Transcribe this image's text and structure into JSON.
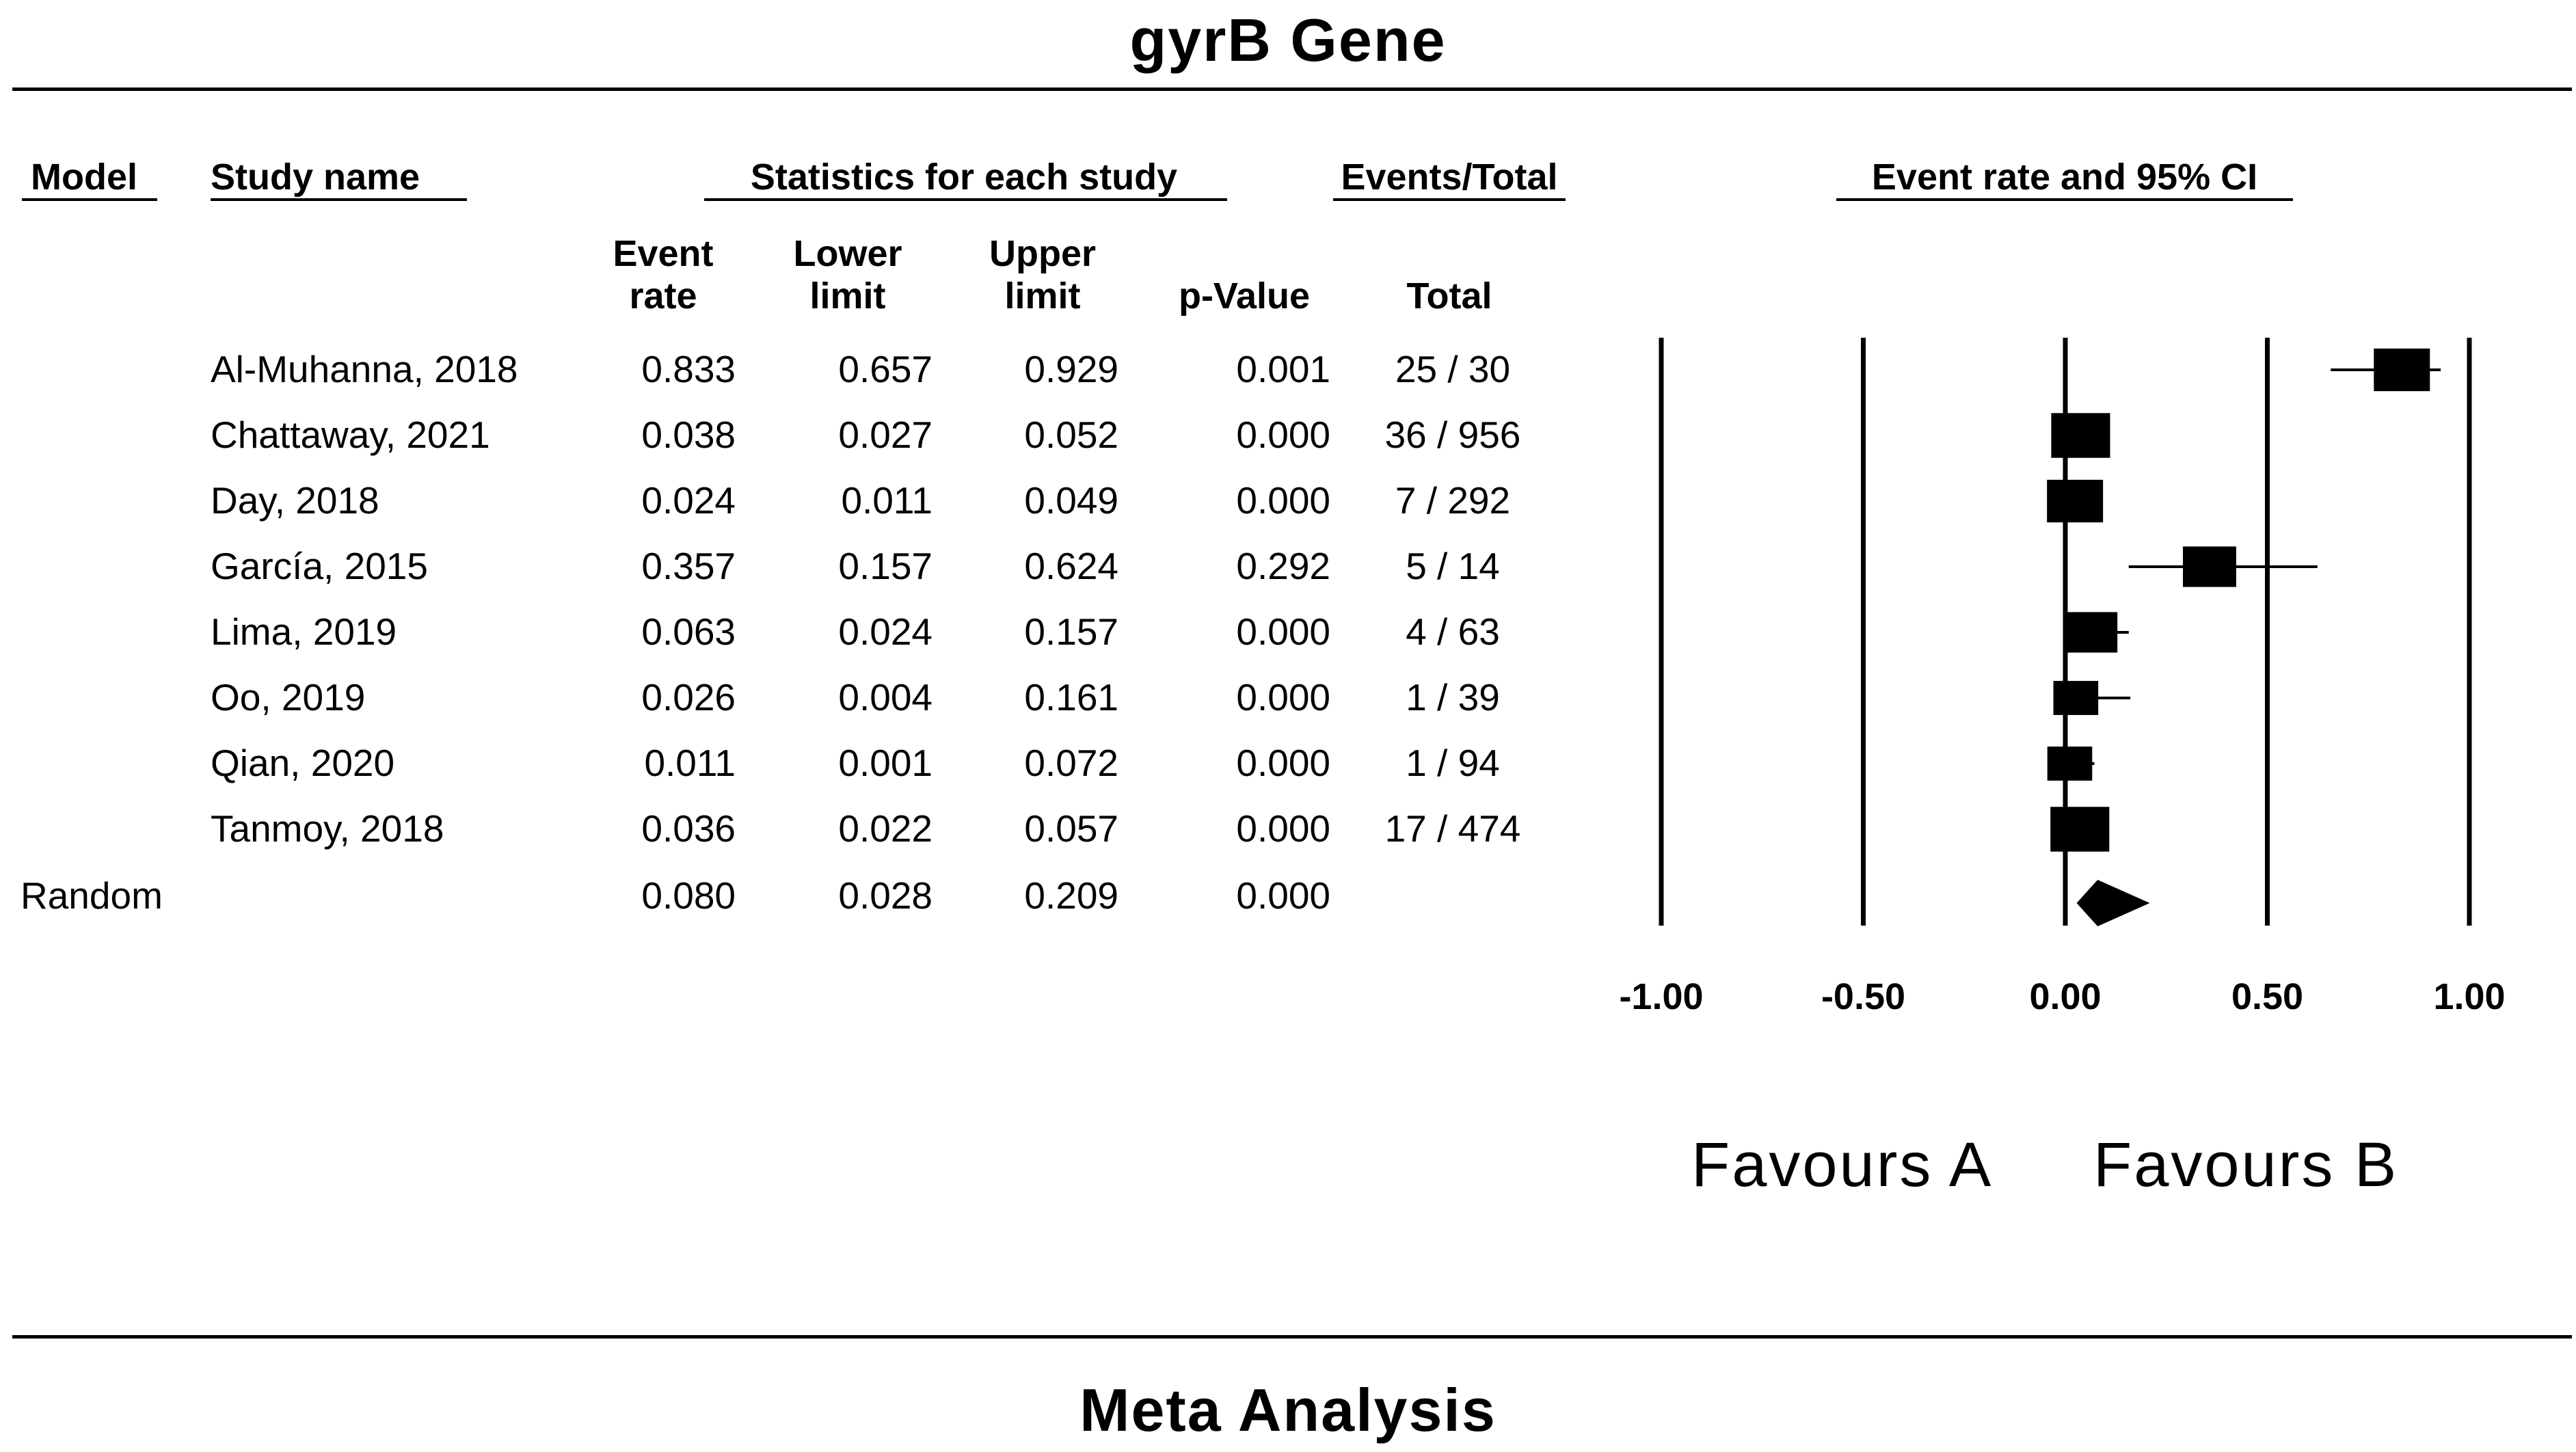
{
  "title": "gyrB Gene",
  "footer": "Meta Analysis",
  "headers": {
    "model": "Model",
    "study_name": "Study name",
    "statistics": "Statistics for each study",
    "events_total": "Events/Total",
    "plot": "Event rate and 95%  CI"
  },
  "subheaders": {
    "event_rate": [
      "Event",
      "rate"
    ],
    "lower_limit": [
      "Lower",
      "limit"
    ],
    "upper_limit": [
      "Upper",
      "limit"
    ],
    "p_value": "p-Value",
    "total": "Total"
  },
  "rows": [
    {
      "study": "Al-Muhanna, 2018",
      "rate": "0.833",
      "lower": "0.657",
      "upper": "0.929",
      "p": "0.001",
      "total": "25 / 30"
    },
    {
      "study": "Chattaway, 2021",
      "rate": "0.038",
      "lower": "0.027",
      "upper": "0.052",
      "p": "0.000",
      "total": "36 / 956"
    },
    {
      "study": "Day, 2018",
      "rate": "0.024",
      "lower": "0.011",
      "upper": "0.049",
      "p": "0.000",
      "total": "7 / 292"
    },
    {
      "study": "García, 2015",
      "rate": "0.357",
      "lower": "0.157",
      "upper": "0.624",
      "p": "0.292",
      "total": "5 / 14"
    },
    {
      "study": "Lima, 2019",
      "rate": "0.063",
      "lower": "0.024",
      "upper": "0.157",
      "p": "0.000",
      "total": "4 / 63"
    },
    {
      "study": "Oo, 2019",
      "rate": "0.026",
      "lower": "0.004",
      "upper": "0.161",
      "p": "0.000",
      "total": "1 / 39"
    },
    {
      "study": "Qian, 2020",
      "rate": "0.011",
      "lower": "0.001",
      "upper": "0.072",
      "p": "0.000",
      "total": "1 / 94"
    },
    {
      "study": "Tanmoy, 2018",
      "rate": "0.036",
      "lower": "0.022",
      "upper": "0.057",
      "p": "0.000",
      "total": "17 / 474"
    }
  ],
  "summary": {
    "model": "Random",
    "rate": "0.080",
    "lower": "0.028",
    "upper": "0.209",
    "p": "0.000"
  },
  "favours": {
    "left": "Favours A",
    "right": "Favours B"
  },
  "chart_data": {
    "type": "forest",
    "title": "gyrB Gene",
    "xlim": [
      -1.0,
      1.0
    ],
    "x_ticks": [
      "-1.00",
      "-0.50",
      "0.00",
      "0.50",
      "1.00"
    ],
    "x_tick_values": [
      -1.0,
      -0.5,
      0.0,
      0.5,
      1.0
    ],
    "studies": [
      {
        "name": "Al-Muhanna, 2018",
        "estimate": 0.833,
        "lower": 0.657,
        "upper": 0.929,
        "weight": 1.0
      },
      {
        "name": "Chattaway, 2021",
        "estimate": 0.038,
        "lower": 0.027,
        "upper": 0.052,
        "weight": 1.05
      },
      {
        "name": "Day, 2018",
        "estimate": 0.024,
        "lower": 0.011,
        "upper": 0.049,
        "weight": 1.0
      },
      {
        "name": "García, 2015",
        "estimate": 0.357,
        "lower": 0.157,
        "upper": 0.624,
        "weight": 0.95
      },
      {
        "name": "Lima, 2019",
        "estimate": 0.063,
        "lower": 0.024,
        "upper": 0.157,
        "weight": 0.95
      },
      {
        "name": "Oo, 2019",
        "estimate": 0.026,
        "lower": 0.004,
        "upper": 0.161,
        "weight": 0.8
      },
      {
        "name": "Qian, 2020",
        "estimate": 0.011,
        "lower": 0.001,
        "upper": 0.072,
        "weight": 0.8
      },
      {
        "name": "Tanmoy, 2018",
        "estimate": 0.036,
        "lower": 0.022,
        "upper": 0.057,
        "weight": 1.05
      }
    ],
    "pooled": {
      "model": "Random",
      "estimate": 0.08,
      "lower": 0.028,
      "upper": 0.209
    },
    "reference_lines": [
      -1.0,
      -0.5,
      0.0,
      0.5,
      1.0
    ],
    "color": "#000000"
  }
}
